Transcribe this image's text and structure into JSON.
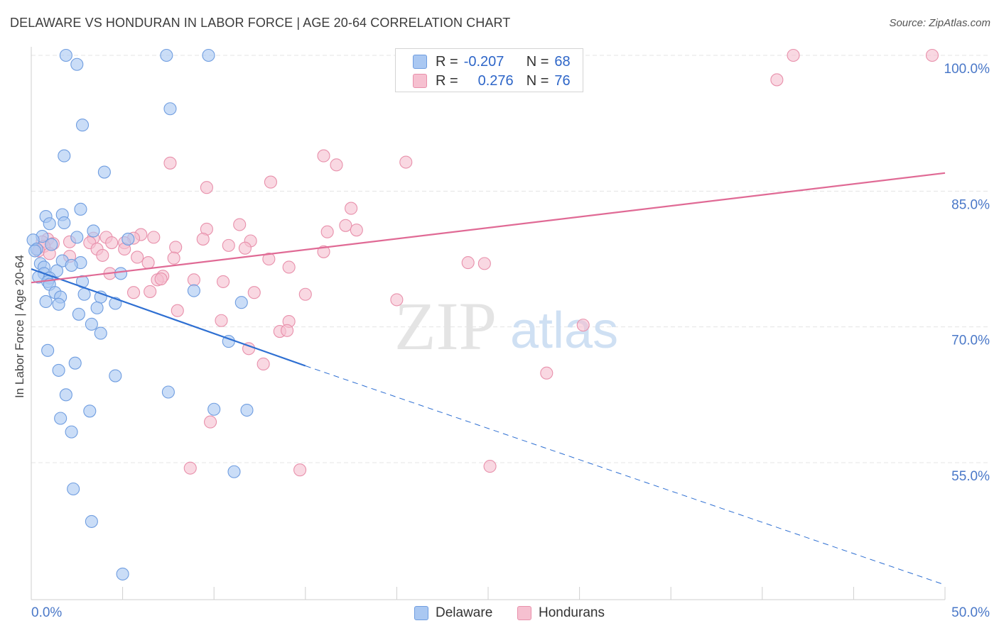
{
  "title": "DELAWARE VS HONDURAN IN LABOR FORCE | AGE 20-64 CORRELATION CHART",
  "source": "Source: ZipAtlas.com",
  "watermark": {
    "zip": "ZIP",
    "atlas": "atlas"
  },
  "legend_top": {
    "rows": [
      {
        "r_label": "R =",
        "r_value": "-0.207",
        "n_label": "N =",
        "n_value": "68"
      },
      {
        "r_label": "R =",
        "r_value": "0.276",
        "n_label": "N =",
        "n_value": "76"
      }
    ]
  },
  "legend_bottom": [
    "Delaware",
    "Hondurans"
  ],
  "colors": {
    "delaware_fill": "#aac8f2",
    "delaware_stroke": "#6f9de0",
    "delaware_line": "#2e6fd2",
    "hondurans_fill": "#f6c0d0",
    "hondurans_stroke": "#e890ab",
    "hondurans_line": "#e06a95",
    "tick_text": "#4a78c8"
  },
  "chart_data": {
    "type": "scatter",
    "title": "DELAWARE VS HONDURAN IN LABOR FORCE | AGE 20-64 CORRELATION CHART",
    "xlabel": "",
    "ylabel": "In Labor Force | Age 20-64",
    "xlim": [
      0,
      50
    ],
    "ylim": [
      42,
      102
    ],
    "x_tick_labels": [
      "0.0%",
      "50.0%"
    ],
    "y_ticks": [
      55,
      70,
      85,
      100
    ],
    "y_tick_labels": [
      "55.0%",
      "70.0%",
      "85.0%",
      "100.0%"
    ],
    "grid": true,
    "series": [
      {
        "name": "Delaware",
        "R": -0.207,
        "N": 68,
        "trend": {
          "x_solid": [
            0,
            15
          ],
          "y_solid": [
            76.4,
            65.7
          ],
          "x_dashed": [
            15,
            50
          ],
          "y_dashed": [
            65.7,
            41.5
          ]
        },
        "points": [
          [
            1.9,
            100
          ],
          [
            2.5,
            99
          ],
          [
            7.4,
            100
          ],
          [
            9.7,
            100
          ],
          [
            7.6,
            94.1
          ],
          [
            2.8,
            92.3
          ],
          [
            1.8,
            88.9
          ],
          [
            4.0,
            87.1
          ],
          [
            2.7,
            83.0
          ],
          [
            1.7,
            82.4
          ],
          [
            0.8,
            82.2
          ],
          [
            1.0,
            81.4
          ],
          [
            1.8,
            81.5
          ],
          [
            3.4,
            80.6
          ],
          [
            0.6,
            80.0
          ],
          [
            2.5,
            79.9
          ],
          [
            5.3,
            79.7
          ],
          [
            0.1,
            79.6
          ],
          [
            0.3,
            78.6
          ],
          [
            0.2,
            78.4
          ],
          [
            1.1,
            79.1
          ],
          [
            1.7,
            77.3
          ],
          [
            2.7,
            77.1
          ],
          [
            0.5,
            77.0
          ],
          [
            2.2,
            76.8
          ],
          [
            0.7,
            76.6
          ],
          [
            1.4,
            76.2
          ],
          [
            0.7,
            75.9
          ],
          [
            4.9,
            75.9
          ],
          [
            0.4,
            75.5
          ],
          [
            1.0,
            75.4
          ],
          [
            0.9,
            75.0
          ],
          [
            1.0,
            74.7
          ],
          [
            2.8,
            75.0
          ],
          [
            2.9,
            73.6
          ],
          [
            1.3,
            73.8
          ],
          [
            3.8,
            73.3
          ],
          [
            1.6,
            73.3
          ],
          [
            0.8,
            72.8
          ],
          [
            1.5,
            72.5
          ],
          [
            4.6,
            72.6
          ],
          [
            11.5,
            72.7
          ],
          [
            3.6,
            72.1
          ],
          [
            8.9,
            74.0
          ],
          [
            2.6,
            71.4
          ],
          [
            3.3,
            70.3
          ],
          [
            3.8,
            69.3
          ],
          [
            10.8,
            68.4
          ],
          [
            0.9,
            67.4
          ],
          [
            2.4,
            66.0
          ],
          [
            1.5,
            65.2
          ],
          [
            4.6,
            64.6
          ],
          [
            1.9,
            62.5
          ],
          [
            7.5,
            62.8
          ],
          [
            3.2,
            60.7
          ],
          [
            1.6,
            59.9
          ],
          [
            10.0,
            60.9
          ],
          [
            11.8,
            60.8
          ],
          [
            2.2,
            58.4
          ],
          [
            11.1,
            54.0
          ],
          [
            2.3,
            52.1
          ],
          [
            3.3,
            48.5
          ],
          [
            5.0,
            42.7
          ]
        ]
      },
      {
        "name": "Hondurans",
        "R": 0.276,
        "N": 76,
        "trend": {
          "x": [
            0,
            50
          ],
          "y": [
            74.9,
            87.0
          ]
        },
        "points": [
          [
            41.7,
            100
          ],
          [
            49.3,
            100
          ],
          [
            40.8,
            97.3
          ],
          [
            16.0,
            88.9
          ],
          [
            16.7,
            87.9
          ],
          [
            20.5,
            88.2
          ],
          [
            7.6,
            88.1
          ],
          [
            13.1,
            86.0
          ],
          [
            9.6,
            85.4
          ],
          [
            17.5,
            83.1
          ],
          [
            11.4,
            81.3
          ],
          [
            17.2,
            81.2
          ],
          [
            9.6,
            80.8
          ],
          [
            17.8,
            80.7
          ],
          [
            16.2,
            80.5
          ],
          [
            6.0,
            80.2
          ],
          [
            6.7,
            79.9
          ],
          [
            3.4,
            79.8
          ],
          [
            4.1,
            79.9
          ],
          [
            5.6,
            79.8
          ],
          [
            9.4,
            79.7
          ],
          [
            12.0,
            79.5
          ],
          [
            5.1,
            79.3
          ],
          [
            0.9,
            79.7
          ],
          [
            0.6,
            79.4
          ],
          [
            1.2,
            79.2
          ],
          [
            2.1,
            79.4
          ],
          [
            3.2,
            79.3
          ],
          [
            4.4,
            79.3
          ],
          [
            0.7,
            78.9
          ],
          [
            10.8,
            79.0
          ],
          [
            7.9,
            78.8
          ],
          [
            3.6,
            78.6
          ],
          [
            5.1,
            78.6
          ],
          [
            11.7,
            78.7
          ],
          [
            0.4,
            78.4
          ],
          [
            1.0,
            78.1
          ],
          [
            3.9,
            77.9
          ],
          [
            2.1,
            77.8
          ],
          [
            16.0,
            78.3
          ],
          [
            5.8,
            77.7
          ],
          [
            7.8,
            77.6
          ],
          [
            13.0,
            77.5
          ],
          [
            6.4,
            77.1
          ],
          [
            23.9,
            77.1
          ],
          [
            24.8,
            77.0
          ],
          [
            14.1,
            76.6
          ],
          [
            4.3,
            75.9
          ],
          [
            7.2,
            75.6
          ],
          [
            6.9,
            75.2
          ],
          [
            7.1,
            75.3
          ],
          [
            8.9,
            75.2
          ],
          [
            10.5,
            75.0
          ],
          [
            5.6,
            73.8
          ],
          [
            6.5,
            73.9
          ],
          [
            12.2,
            73.8
          ],
          [
            15.0,
            73.6
          ],
          [
            20.0,
            73.0
          ],
          [
            8.0,
            71.8
          ],
          [
            10.4,
            70.7
          ],
          [
            14.1,
            70.6
          ],
          [
            13.6,
            69.5
          ],
          [
            14.0,
            69.6
          ],
          [
            30.2,
            70.2
          ],
          [
            11.9,
            67.6
          ],
          [
            12.7,
            65.9
          ],
          [
            28.2,
            64.9
          ],
          [
            9.8,
            59.5
          ],
          [
            8.7,
            54.4
          ],
          [
            14.7,
            54.2
          ],
          [
            25.1,
            54.6
          ]
        ]
      }
    ]
  }
}
